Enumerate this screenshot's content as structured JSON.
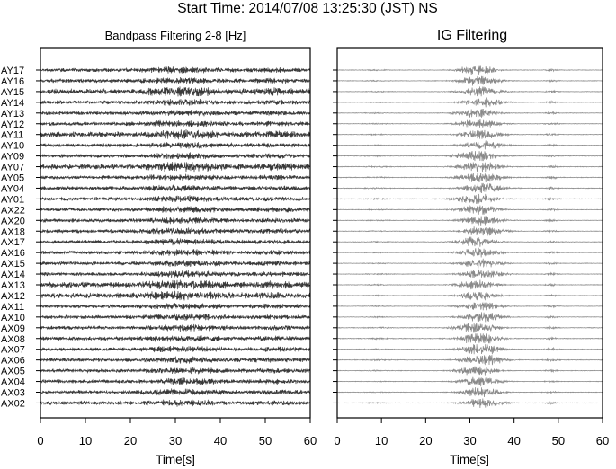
{
  "title": "Start Time: 2014/07/08 13:25:30 (JST) NS",
  "chart_data": [
    {
      "type": "line",
      "title": "Bandpass Filtering 2-8 [Hz]",
      "xlabel": "Time[s]",
      "ylabel": "",
      "xlim": [
        0,
        60
      ],
      "xticks": [
        "0",
        "10",
        "20",
        "30",
        "40",
        "50",
        "60"
      ],
      "grid": false,
      "series_kind": "bandpass",
      "trace_color": "#3a3a3a",
      "stations": [
        "AY17",
        "AY16",
        "AY15",
        "AY14",
        "AY13",
        "AY12",
        "AY11",
        "AY10",
        "AY09",
        "AY07",
        "AY05",
        "AY04",
        "AY01",
        "AX22",
        "AX20",
        "AX18",
        "AX17",
        "AX16",
        "AX15",
        "AX14",
        "AX13",
        "AX12",
        "AX11",
        "AX10",
        "AX09",
        "AX08",
        "AX07",
        "AX06",
        "AX05",
        "AX04",
        "AX03",
        "AX02"
      ]
    },
    {
      "type": "line",
      "title": "IG Filtering",
      "xlabel": "Time[s]",
      "ylabel": "",
      "xlim": [
        0,
        60
      ],
      "xticks": [
        "0",
        "10",
        "20",
        "30",
        "40",
        "50",
        "60"
      ],
      "grid": false,
      "series_kind": "ig",
      "trace_color": "#8a8a8a",
      "stations": [
        "AY17",
        "AY16",
        "AY15",
        "AY14",
        "AY13",
        "AY12",
        "AY11",
        "AY10",
        "AY09",
        "AY07",
        "AY05",
        "AY04",
        "AY01",
        "AX22",
        "AX20",
        "AX18",
        "AX17",
        "AX16",
        "AX15",
        "AX14",
        "AX13",
        "AX12",
        "AX11",
        "AX10",
        "AX09",
        "AX08",
        "AX07",
        "AX06",
        "AX05",
        "AX04",
        "AX03",
        "AX02"
      ]
    }
  ]
}
